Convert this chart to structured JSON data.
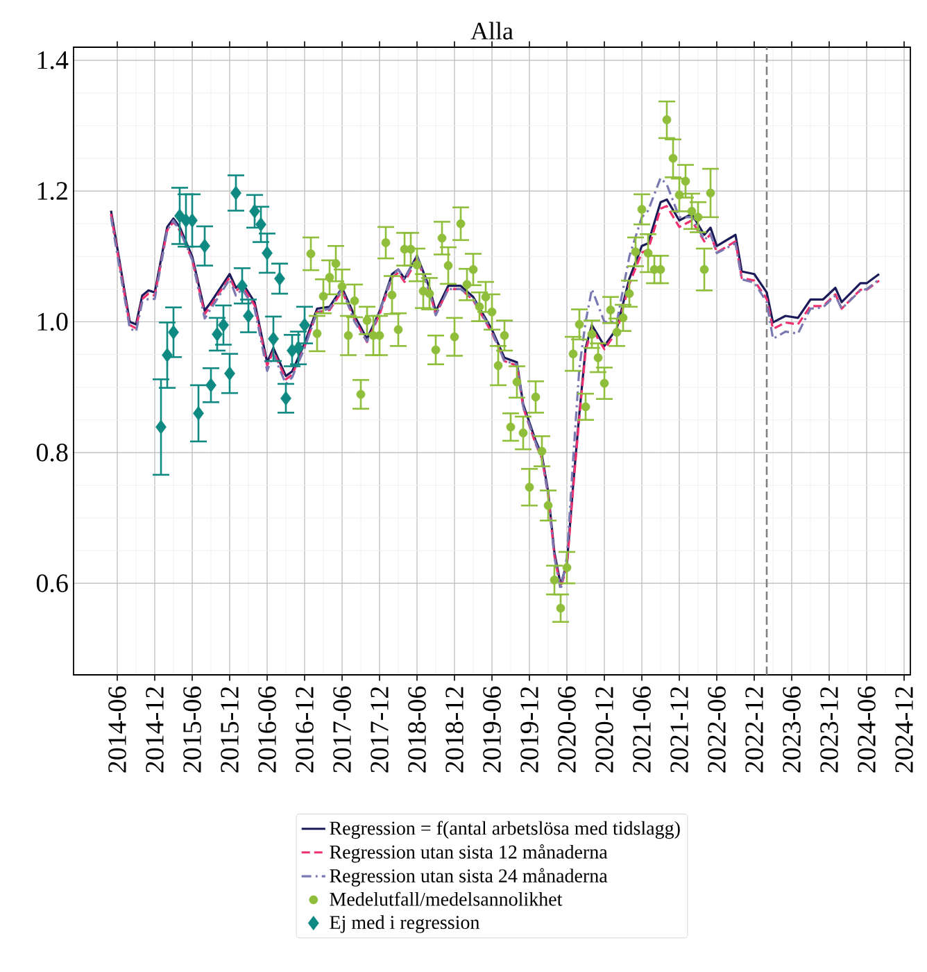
{
  "chart_data": {
    "type": "line",
    "title": "Alla",
    "xlim": [
      "2013-11",
      "2025-01"
    ],
    "ylim": [
      0.46,
      1.42
    ],
    "xticks": [
      "2014-06",
      "2014-12",
      "2015-06",
      "2015-12",
      "2016-06",
      "2016-12",
      "2017-06",
      "2017-12",
      "2018-06",
      "2018-12",
      "2019-06",
      "2019-12",
      "2020-06",
      "2020-12",
      "2021-06",
      "2021-12",
      "2022-06",
      "2022-12",
      "2023-06",
      "2023-12",
      "2024-06",
      "2024-12"
    ],
    "yticks": [
      0.6,
      0.8,
      {
        "value": 1,
        "label": "1.0"
      },
      1.2,
      1.4
    ],
    "grid": true,
    "legend": "bottom",
    "ref_lines": [
      {
        "axis": "x",
        "value": "2023-02",
        "color": "#808080",
        "line_style": "dashed"
      }
    ],
    "series": [
      {
        "name": "Regression = f(antal arbetslösa med tidslagg)",
        "color": "#1b1b5a",
        "line_style": "solid",
        "x": [
          "2014-05",
          "2014-08",
          "2014-09",
          "2014-10",
          "2014-11",
          "2014-12",
          "2015-02",
          "2015-03",
          "2015-04",
          "2015-06",
          "2015-08",
          "2015-09",
          "2015-12",
          "2016-01",
          "2016-02",
          "2016-04",
          "2016-06",
          "2016-07",
          "2016-09",
          "2016-10",
          "2016-12",
          "2017-02",
          "2017-04",
          "2017-06",
          "2017-08",
          "2017-10",
          "2017-12",
          "2018-02",
          "2018-03",
          "2018-04",
          "2018-06",
          "2018-08",
          "2018-09",
          "2018-11",
          "2019-01",
          "2019-03",
          "2019-06",
          "2019-08",
          "2019-10",
          "2019-11",
          "2020-01",
          "2020-02",
          "2020-03",
          "2020-04",
          "2020-05",
          "2020-06",
          "2020-07",
          "2020-08",
          "2020-09",
          "2020-10",
          "2020-12",
          "2021-02",
          "2021-04",
          "2021-06",
          "2021-07",
          "2021-09",
          "2021-10",
          "2021-12",
          "2022-02",
          "2022-04",
          "2022-05",
          "2022-06",
          "2022-09",
          "2022-10",
          "2022-12",
          "2023-02",
          "2023-03",
          "2023-05",
          "2023-07",
          "2023-09",
          "2023-11",
          "2024-01",
          "2024-02",
          "2024-05",
          "2024-06",
          "2024-08"
        ],
        "values": [
          1.17,
          1.0,
          0.996,
          1.04,
          1.048,
          1.045,
          1.145,
          1.158,
          1.145,
          1.1,
          1.017,
          1.03,
          1.073,
          1.052,
          1.06,
          1.03,
          0.938,
          0.96,
          0.917,
          0.924,
          0.967,
          1.02,
          1.023,
          1.052,
          1.009,
          0.974,
          1.016,
          1.073,
          1.08,
          1.066,
          1.101,
          1.052,
          1.016,
          1.055,
          1.055,
          1.038,
          0.988,
          0.945,
          0.938,
          0.874,
          0.818,
          0.796,
          0.74,
          0.647,
          0.598,
          0.63,
          0.75,
          0.86,
          0.96,
          0.995,
          0.963,
          0.99,
          1.066,
          1.116,
          1.12,
          1.183,
          1.187,
          1.155,
          1.165,
          1.133,
          1.144,
          1.116,
          1.133,
          1.077,
          1.073,
          1.045,
          0.999,
          1.009,
          1.006,
          1.034,
          1.034,
          1.052,
          1.03,
          1.059,
          1.059,
          1.073
        ]
      },
      {
        "name": "Regression utan sista 12 månaderna",
        "color": "#f0306e",
        "line_style": "dashed",
        "x": [
          "2014-05",
          "2014-08",
          "2014-09",
          "2014-10",
          "2014-11",
          "2014-12",
          "2015-02",
          "2015-03",
          "2015-04",
          "2015-06",
          "2015-08",
          "2015-09",
          "2015-12",
          "2016-01",
          "2016-02",
          "2016-04",
          "2016-06",
          "2016-07",
          "2016-09",
          "2016-10",
          "2016-12",
          "2017-02",
          "2017-04",
          "2017-06",
          "2017-08",
          "2017-10",
          "2017-12",
          "2018-02",
          "2018-03",
          "2018-04",
          "2018-06",
          "2018-08",
          "2018-09",
          "2018-11",
          "2019-01",
          "2019-03",
          "2019-06",
          "2019-08",
          "2019-10",
          "2019-11",
          "2020-01",
          "2020-02",
          "2020-03",
          "2020-04",
          "2020-05",
          "2020-06",
          "2020-07",
          "2020-08",
          "2020-09",
          "2020-10",
          "2020-12",
          "2021-02",
          "2021-04",
          "2021-06",
          "2021-07",
          "2021-09",
          "2021-10",
          "2021-12",
          "2022-02",
          "2022-04",
          "2022-05",
          "2022-06",
          "2022-09",
          "2022-10",
          "2022-12",
          "2023-02",
          "2023-03",
          "2023-05",
          "2023-07",
          "2023-09",
          "2023-11",
          "2024-01",
          "2024-02",
          "2024-05",
          "2024-06",
          "2024-08"
        ],
        "values": [
          1.165,
          0.995,
          0.99,
          1.035,
          1.043,
          1.04,
          1.14,
          1.153,
          1.14,
          1.095,
          1.012,
          1.025,
          1.068,
          1.047,
          1.055,
          1.025,
          0.933,
          0.955,
          0.912,
          0.919,
          0.962,
          1.015,
          1.018,
          1.047,
          1.004,
          0.969,
          1.011,
          1.068,
          1.075,
          1.061,
          1.096,
          1.047,
          1.011,
          1.05,
          1.05,
          1.033,
          0.983,
          0.94,
          0.933,
          0.869,
          0.813,
          0.791,
          0.735,
          0.642,
          0.593,
          0.625,
          0.745,
          0.855,
          0.955,
          0.99,
          0.958,
          0.985,
          1.058,
          1.106,
          1.11,
          1.173,
          1.177,
          1.145,
          1.155,
          1.123,
          1.134,
          1.106,
          1.123,
          1.067,
          1.063,
          1.035,
          0.989,
          0.999,
          0.996,
          1.024,
          1.024,
          1.042,
          1.02,
          1.049,
          1.049,
          1.063
        ]
      },
      {
        "name": "Regression utan sista 24 månaderna",
        "color": "#7a78b0",
        "line_style": "dashdot",
        "x": [
          "2014-05",
          "2014-08",
          "2014-09",
          "2014-10",
          "2014-11",
          "2014-12",
          "2015-02",
          "2015-03",
          "2015-04",
          "2015-06",
          "2015-08",
          "2015-09",
          "2015-12",
          "2016-01",
          "2016-02",
          "2016-04",
          "2016-06",
          "2016-07",
          "2016-09",
          "2016-10",
          "2016-12",
          "2017-02",
          "2017-04",
          "2017-06",
          "2017-08",
          "2017-10",
          "2017-12",
          "2018-02",
          "2018-03",
          "2018-04",
          "2018-06",
          "2018-08",
          "2018-09",
          "2018-11",
          "2019-01",
          "2019-03",
          "2019-06",
          "2019-08",
          "2019-10",
          "2019-11",
          "2020-01",
          "2020-02",
          "2020-03",
          "2020-04",
          "2020-05",
          "2020-06",
          "2020-07",
          "2020-08",
          "2020-09",
          "2020-10",
          "2020-12",
          "2021-02",
          "2021-04",
          "2021-06",
          "2021-07",
          "2021-09",
          "2021-10",
          "2021-12",
          "2022-02",
          "2022-04",
          "2022-05",
          "2022-06",
          "2022-09",
          "2022-10",
          "2022-12",
          "2023-02",
          "2023-03",
          "2023-05",
          "2023-07",
          "2023-09",
          "2023-11",
          "2024-01",
          "2024-02",
          "2024-05",
          "2024-06",
          "2024-08"
        ],
        "values": [
          1.16,
          0.99,
          0.985,
          1.03,
          1.035,
          1.035,
          1.14,
          1.155,
          1.14,
          1.095,
          1.005,
          1.02,
          1.065,
          1.04,
          1.05,
          1.02,
          0.925,
          0.95,
          0.905,
          0.915,
          0.96,
          1.015,
          1.02,
          1.05,
          1.0,
          0.97,
          1.015,
          1.07,
          1.08,
          1.065,
          1.1,
          1.045,
          1.01,
          1.05,
          1.05,
          1.035,
          0.985,
          0.94,
          0.935,
          0.87,
          0.815,
          0.79,
          0.735,
          0.64,
          0.59,
          0.64,
          0.79,
          0.93,
          1.0,
          1.05,
          1.0,
          1.0,
          1.1,
          1.16,
          1.17,
          1.22,
          1.21,
          1.16,
          1.16,
          1.125,
          1.135,
          1.105,
          1.12,
          1.065,
          1.06,
          1.03,
          0.974,
          0.985,
          0.982,
          1.02,
          1.022,
          1.04,
          1.02,
          1.048,
          1.05,
          1.065
        ]
      },
      {
        "name": "Medelutfall/medelsannolikhet",
        "type": "scatter",
        "color": "#8fbe3b",
        "marker": "circle",
        "x": [
          "2017-01",
          "2017-02",
          "2017-03",
          "2017-04",
          "2017-05",
          "2017-06",
          "2017-07",
          "2017-08",
          "2017-09",
          "2017-10",
          "2017-11",
          "2017-12",
          "2018-01",
          "2018-02",
          "2018-03",
          "2018-04",
          "2018-05",
          "2018-06",
          "2018-07",
          "2018-08",
          "2018-09",
          "2018-10",
          "2018-11",
          "2018-12",
          "2019-01",
          "2019-02",
          "2019-03",
          "2019-04",
          "2019-05",
          "2019-06",
          "2019-07",
          "2019-08",
          "2019-09",
          "2019-10",
          "2019-11",
          "2019-12",
          "2020-01",
          "2020-02",
          "2020-03",
          "2020-04",
          "2020-05",
          "2020-06",
          "2020-07",
          "2020-08",
          "2020-09",
          "2020-10",
          "2020-11",
          "2020-12",
          "2021-01",
          "2021-02",
          "2021-03",
          "2021-04",
          "2021-05",
          "2021-06",
          "2021-07",
          "2021-08",
          "2021-09",
          "2021-10",
          "2021-11",
          "2021-12",
          "2022-01",
          "2022-02",
          "2022-03",
          "2022-04",
          "2022-05"
        ],
        "values": [
          1.104,
          0.982,
          1.039,
          1.068,
          1.089,
          1.054,
          0.979,
          1.032,
          0.889,
          1.002,
          0.979,
          0.979,
          1.121,
          1.041,
          0.988,
          1.111,
          1.111,
          1.087,
          1.047,
          1.043,
          0.957,
          1.128,
          1.086,
          0.977,
          1.15,
          1.057,
          1.08,
          1.023,
          1.038,
          1.015,
          0.933,
          0.979,
          0.839,
          0.908,
          0.83,
          0.747,
          0.885,
          0.802,
          0.719,
          0.605,
          0.562,
          0.624,
          0.951,
          0.996,
          0.87,
          0.981,
          0.945,
          0.906,
          1.018,
          0.984,
          1.006,
          1.043,
          1.107,
          1.172,
          1.105,
          1.08,
          1.08,
          1.309,
          1.25,
          1.194,
          1.215,
          1.169,
          1.16,
          1.08,
          1.197
        ],
        "errors": [
          0.025,
          0.027,
          0.026,
          0.026,
          0.027,
          0.026,
          0.03,
          0.025,
          0.022,
          0.021,
          0.03,
          0.03,
          0.024,
          0.029,
          0.025,
          0.025,
          0.025,
          0.025,
          0.026,
          0.024,
          0.022,
          0.025,
          0.028,
          0.029,
          0.025,
          0.024,
          0.024,
          0.022,
          0.023,
          0.027,
          0.03,
          0.023,
          0.021,
          0.024,
          0.025,
          0.028,
          0.024,
          0.023,
          0.023,
          0.022,
          0.021,
          0.024,
          0.026,
          0.023,
          0.02,
          0.021,
          0.022,
          0.024,
          0.02,
          0.021,
          0.02,
          0.02,
          0.022,
          0.023,
          0.029,
          0.021,
          0.021,
          0.028,
          0.029,
          0.025,
          0.025,
          0.027,
          0.023,
          0.032,
          0.037
        ]
      },
      {
        "name": "Ej med i regression",
        "type": "scatter",
        "color": "#0e8a82",
        "marker": "diamond",
        "x": [
          "2015-01",
          "2015-02",
          "2015-03",
          "2015-04",
          "2015-05",
          "2015-06",
          "2015-07",
          "2015-08",
          "2015-09",
          "2015-10",
          "2015-11",
          "2015-12",
          "2016-01",
          "2016-02",
          "2016-03",
          "2016-04",
          "2016-05",
          "2016-06",
          "2016-07",
          "2016-08",
          "2016-09",
          "2016-10",
          "2016-11",
          "2016-12"
        ],
        "values": [
          0.839,
          0.949,
          0.984,
          1.162,
          1.155,
          1.155,
          0.86,
          1.116,
          0.903,
          0.981,
          0.995,
          0.921,
          1.197,
          1.055,
          1.009,
          1.169,
          1.149,
          1.105,
          0.974,
          1.066,
          0.883,
          0.956,
          0.96,
          0.995
        ],
        "errors": [
          0.073,
          0.05,
          0.038,
          0.043,
          0.04,
          0.04,
          0.043,
          0.03,
          0.026,
          0.025,
          0.03,
          0.03,
          0.027,
          0.027,
          0.025,
          0.025,
          0.027,
          0.03,
          0.034,
          0.023,
          0.022,
          0.024,
          0.025,
          0.028
        ]
      }
    ]
  }
}
